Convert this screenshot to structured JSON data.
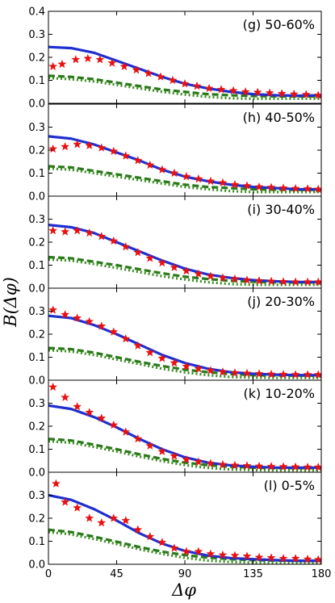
{
  "chart_data": {
    "type": "line",
    "xlabel": "Δφ",
    "ylabel": "B(Δφ)",
    "xlim": [
      0,
      180
    ],
    "ylim": [
      0,
      0.4
    ],
    "x_ticks": [
      "0",
      "45",
      "90",
      "135",
      "180"
    ],
    "x_tick_values": [
      0,
      45,
      90,
      135,
      180
    ],
    "y_ticks_top": [
      "0.0",
      "0.1",
      "0.2",
      "0.3",
      "0.4"
    ],
    "y_ticks": [
      "0.0",
      "0.1",
      "0.2",
      "0.3"
    ],
    "y_tick_values": [
      0,
      0.1,
      0.2,
      0.3,
      0.4
    ],
    "colors": {
      "solid": "#1f2fd0",
      "dashed": "#2a7a1a",
      "dotted": "#3c8c22",
      "stars": "#e81010"
    },
    "panels": [
      {
        "label": "(g) 50-60%",
        "x": [
          0,
          15,
          30,
          45,
          60,
          75,
          90,
          105,
          120,
          135,
          150,
          165,
          180
        ],
        "series": [
          {
            "style": "solid",
            "values": [
              0.245,
              0.24,
              0.22,
              0.185,
              0.15,
              0.115,
              0.085,
              0.065,
              0.05,
              0.04,
              0.035,
              0.033,
              0.035
            ]
          },
          {
            "style": "dashed",
            "values": [
              0.12,
              0.115,
              0.105,
              0.09,
              0.075,
              0.06,
              0.05,
              0.04,
              0.035,
              0.032,
              0.03,
              0.03,
              0.03
            ]
          },
          {
            "style": "dotted",
            "values": [
              0.11,
              0.105,
              0.095,
              0.08,
              0.065,
              0.05,
              0.038,
              0.028,
              0.022,
              0.02,
              0.02,
              0.02,
              0.02
            ]
          }
        ],
        "stars": {
          "x": [
            3,
            9,
            18,
            26,
            34,
            42,
            50,
            58,
            66,
            74,
            82,
            90,
            98,
            106,
            114,
            122,
            130,
            138,
            146,
            154,
            162,
            170,
            178
          ],
          "y": [
            0.16,
            0.17,
            0.19,
            0.195,
            0.19,
            0.175,
            0.16,
            0.145,
            0.13,
            0.115,
            0.1,
            0.085,
            0.075,
            0.065,
            0.06,
            0.055,
            0.05,
            0.048,
            0.045,
            0.042,
            0.04,
            0.038,
            0.035
          ]
        }
      },
      {
        "label": "(h) 40-50%",
        "x": [
          0,
          15,
          30,
          45,
          60,
          75,
          90,
          105,
          120,
          135,
          150,
          165,
          180
        ],
        "series": [
          {
            "style": "solid",
            "values": [
              0.26,
              0.25,
              0.225,
              0.19,
              0.155,
              0.115,
              0.085,
              0.065,
              0.05,
              0.04,
              0.035,
              0.03,
              0.03
            ]
          },
          {
            "style": "dashed",
            "values": [
              0.13,
              0.125,
              0.11,
              0.095,
              0.08,
              0.065,
              0.05,
              0.04,
              0.035,
              0.03,
              0.028,
              0.027,
              0.027
            ]
          },
          {
            "style": "dotted",
            "values": [
              0.12,
              0.115,
              0.1,
              0.085,
              0.07,
              0.055,
              0.04,
              0.03,
              0.022,
              0.018,
              0.018,
              0.018,
              0.018
            ]
          }
        ],
        "stars": {
          "x": [
            3,
            11,
            19,
            27,
            35,
            43,
            51,
            59,
            67,
            75,
            83,
            91,
            99,
            107,
            115,
            123,
            131,
            139,
            147,
            155,
            163,
            171,
            178
          ],
          "y": [
            0.205,
            0.215,
            0.225,
            0.22,
            0.21,
            0.195,
            0.175,
            0.155,
            0.135,
            0.115,
            0.1,
            0.085,
            0.075,
            0.065,
            0.058,
            0.05,
            0.045,
            0.04,
            0.038,
            0.035,
            0.033,
            0.032,
            0.03
          ]
        }
      },
      {
        "label": "(i) 30-40%",
        "x": [
          0,
          15,
          30,
          45,
          60,
          75,
          90,
          105,
          120,
          135,
          150,
          165,
          180
        ],
        "series": [
          {
            "style": "solid",
            "values": [
              0.275,
              0.265,
              0.24,
              0.2,
              0.16,
              0.12,
              0.085,
              0.06,
              0.045,
              0.035,
              0.03,
              0.027,
              0.027
            ]
          },
          {
            "style": "dashed",
            "values": [
              0.135,
              0.13,
              0.115,
              0.1,
              0.082,
              0.065,
              0.05,
              0.04,
              0.032,
              0.028,
              0.025,
              0.025,
              0.025
            ]
          },
          {
            "style": "dotted",
            "values": [
              0.125,
              0.12,
              0.105,
              0.088,
              0.07,
              0.052,
              0.038,
              0.026,
              0.018,
              0.015,
              0.015,
              0.015,
              0.015
            ]
          }
        ],
        "stars": {
          "x": [
            3,
            11,
            19,
            27,
            35,
            43,
            51,
            59,
            67,
            75,
            83,
            91,
            99,
            107,
            115,
            123,
            131,
            139,
            147,
            155,
            163,
            171,
            178
          ],
          "y": [
            0.25,
            0.245,
            0.25,
            0.24,
            0.225,
            0.205,
            0.18,
            0.155,
            0.13,
            0.11,
            0.09,
            0.075,
            0.062,
            0.052,
            0.045,
            0.04,
            0.035,
            0.032,
            0.03,
            0.028,
            0.027,
            0.027,
            0.027
          ]
        }
      },
      {
        "label": "(j) 20-30%",
        "x": [
          0,
          15,
          30,
          45,
          60,
          75,
          90,
          105,
          120,
          135,
          150,
          165,
          180
        ],
        "series": [
          {
            "style": "solid",
            "values": [
              0.28,
              0.27,
              0.24,
              0.2,
              0.155,
              0.11,
              0.075,
              0.05,
              0.035,
              0.028,
              0.024,
              0.022,
              0.022
            ]
          },
          {
            "style": "dashed",
            "values": [
              0.14,
              0.135,
              0.12,
              0.1,
              0.08,
              0.062,
              0.046,
              0.035,
              0.027,
              0.022,
              0.02,
              0.02,
              0.02
            ]
          },
          {
            "style": "dotted",
            "values": [
              0.13,
              0.125,
              0.11,
              0.09,
              0.07,
              0.05,
              0.034,
              0.022,
              0.014,
              0.011,
              0.01,
              0.01,
              0.01
            ]
          }
        ],
        "stars": {
          "x": [
            3,
            11,
            19,
            27,
            35,
            43,
            51,
            59,
            67,
            75,
            83,
            91,
            99,
            107,
            115,
            123,
            131,
            139,
            147,
            155,
            163,
            171,
            178
          ],
          "y": [
            0.305,
            0.285,
            0.27,
            0.255,
            0.235,
            0.21,
            0.18,
            0.15,
            0.12,
            0.095,
            0.075,
            0.06,
            0.05,
            0.042,
            0.036,
            0.032,
            0.03,
            0.028,
            0.026,
            0.025,
            0.024,
            0.024,
            0.024
          ]
        }
      },
      {
        "label": "(k) 10-20%",
        "x": [
          0,
          15,
          30,
          45,
          60,
          75,
          90,
          105,
          120,
          135,
          150,
          165,
          180
        ],
        "series": [
          {
            "style": "solid",
            "values": [
              0.29,
              0.275,
              0.24,
              0.195,
              0.145,
              0.1,
              0.065,
              0.042,
              0.03,
              0.024,
              0.02,
              0.02,
              0.02
            ]
          },
          {
            "style": "dashed",
            "values": [
              0.145,
              0.138,
              0.12,
              0.1,
              0.078,
              0.058,
              0.042,
              0.031,
              0.024,
              0.02,
              0.018,
              0.018,
              0.018
            ]
          },
          {
            "style": "dotted",
            "values": [
              0.135,
              0.128,
              0.11,
              0.09,
              0.068,
              0.048,
              0.031,
              0.019,
              0.012,
              0.009,
              0.008,
              0.008,
              0.008
            ]
          }
        ],
        "stars": {
          "x": [
            3,
            11,
            19,
            27,
            35,
            43,
            51,
            59,
            67,
            75,
            83,
            91,
            99,
            107,
            115,
            123,
            131,
            139,
            147,
            155,
            163,
            171,
            178
          ],
          "y": [
            0.37,
            0.325,
            0.285,
            0.26,
            0.235,
            0.205,
            0.175,
            0.145,
            0.115,
            0.09,
            0.07,
            0.055,
            0.045,
            0.038,
            0.033,
            0.03,
            0.028,
            0.026,
            0.025,
            0.024,
            0.023,
            0.022,
            0.022
          ]
        }
      },
      {
        "label": "(l) 0-5%",
        "x": [
          0,
          15,
          30,
          45,
          60,
          75,
          90,
          105,
          120,
          135,
          150,
          165,
          180
        ],
        "series": [
          {
            "style": "solid",
            "values": [
              0.3,
              0.28,
              0.24,
              0.19,
              0.135,
              0.09,
              0.058,
              0.038,
              0.027,
              0.022,
              0.018,
              0.015,
              0.015
            ]
          },
          {
            "style": "dashed",
            "values": [
              0.15,
              0.14,
              0.12,
              0.098,
              0.075,
              0.055,
              0.04,
              0.029,
              0.022,
              0.018,
              0.016,
              0.015,
              0.015
            ]
          },
          {
            "style": "dotted",
            "values": [
              0.14,
              0.13,
              0.11,
              0.088,
              0.065,
              0.045,
              0.028,
              0.016,
              0.01,
              0.007,
              0.006,
              0.006,
              0.006
            ]
          }
        ],
        "stars": {
          "x": [
            5,
            11,
            19,
            27,
            35,
            43,
            51,
            59,
            67,
            75,
            83,
            91,
            99,
            107,
            115,
            123,
            131,
            139,
            147,
            155,
            163,
            171,
            178
          ],
          "y": [
            0.35,
            0.27,
            0.245,
            0.2,
            0.18,
            0.2,
            0.19,
            0.15,
            0.12,
            0.095,
            0.07,
            0.055,
            0.055,
            0.045,
            0.04,
            0.038,
            0.035,
            0.03,
            0.028,
            0.025,
            0.025,
            0.022,
            0.02
          ]
        }
      }
    ]
  }
}
